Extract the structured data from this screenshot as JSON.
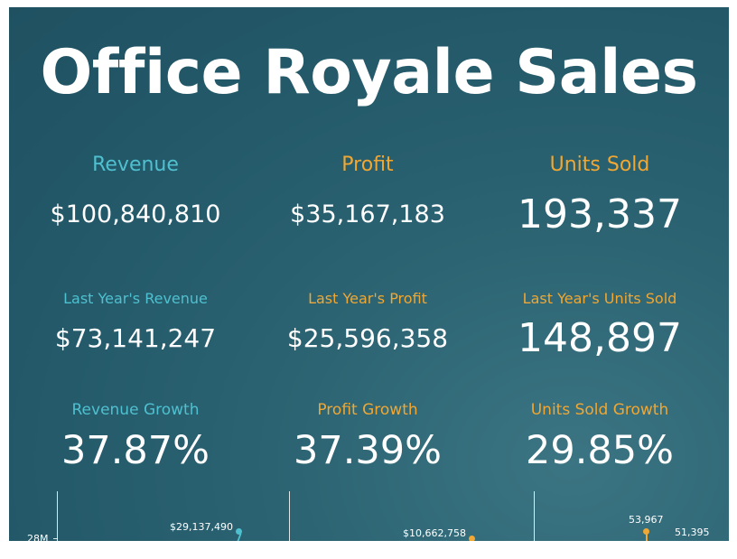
{
  "title": "Office Royale Sales",
  "colors": {
    "teal": "#4fc0cf",
    "orange": "#f0a733",
    "background": "#26606f",
    "text": "#ffffff"
  },
  "kpis": {
    "revenue": {
      "label": "Revenue",
      "value": "$100,840,810",
      "last_year_label": "Last Year's Revenue",
      "last_year_value": "$73,141,247",
      "growth_label": "Revenue Growth",
      "growth_value": "37.87%"
    },
    "profit": {
      "label": "Profit",
      "value": "$35,167,183",
      "last_year_label": "Last Year's Profit",
      "last_year_value": "$25,596,358",
      "growth_label": "Profit Growth",
      "growth_value": "37.39%"
    },
    "units": {
      "label": "Units Sold",
      "value": "193,337",
      "last_year_label": "Last Year's Units Sold",
      "last_year_value": "148,897",
      "growth_label": "Units Sold Growth",
      "growth_value": "29.85%"
    }
  },
  "mini_charts": {
    "revenue": {
      "axis_tick": "28M",
      "point_label": "$29,137,490"
    },
    "profit": {
      "point_label": "$10,662,758"
    },
    "units": {
      "point_label": "53,967",
      "secondary_label": "51,395"
    }
  }
}
